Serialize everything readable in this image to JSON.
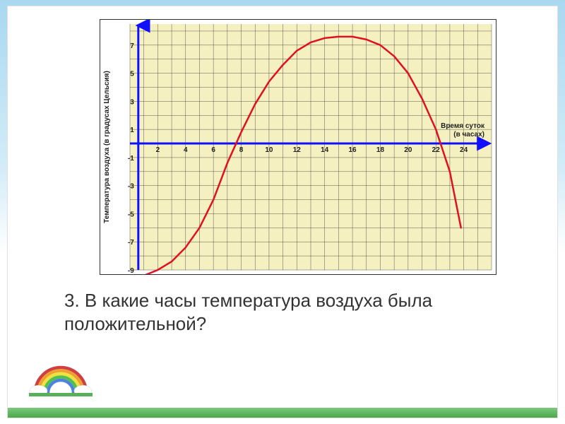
{
  "chart": {
    "type": "line",
    "x_label": "Время суток (в часах)",
    "y_label": "Температура воздуха (в градусах Цельсия)",
    "x_label_fontsize": 10,
    "y_label_fontsize": 10,
    "x_min": 0,
    "x_max": 26,
    "y_min": -9,
    "y_max": 8.5,
    "x_ticks": [
      2,
      4,
      6,
      8,
      10,
      12,
      14,
      16,
      18,
      20,
      22,
      24
    ],
    "y_ticks": [
      -9,
      -7,
      -5,
      -3,
      -1,
      1,
      3,
      5,
      7
    ],
    "tick_fontsize": 10,
    "grid_step_x": 1,
    "grid_step_y": 1,
    "grid_color": "#333333",
    "grid_width": 0.4,
    "plot_bg": "#f5f0c0",
    "axis_color": "#1010ff",
    "axis_width": 3,
    "curve_color": "#e01020",
    "curve_width": 2.5,
    "curve_points": [
      [
        0.2,
        -10.5
      ],
      [
        1,
        -9.4
      ],
      [
        2,
        -9
      ],
      [
        3,
        -8.4
      ],
      [
        4,
        -7.4
      ],
      [
        5,
        -6
      ],
      [
        6,
        -4
      ],
      [
        7,
        -1.4
      ],
      [
        8,
        0.8
      ],
      [
        9,
        2.8
      ],
      [
        10,
        4.4
      ],
      [
        11,
        5.6
      ],
      [
        12,
        6.6
      ],
      [
        13,
        7.2
      ],
      [
        14,
        7.5
      ],
      [
        15,
        7.6
      ],
      [
        16,
        7.6
      ],
      [
        17,
        7.4
      ],
      [
        18,
        7
      ],
      [
        19,
        6.2
      ],
      [
        20,
        5
      ],
      [
        21,
        3.2
      ],
      [
        22,
        1
      ],
      [
        23,
        -2
      ],
      [
        23.8,
        -6
      ]
    ]
  },
  "question": {
    "number": "3.",
    "text": "В какие часы температура воздуха была положительной?"
  },
  "colors": {
    "text": "#333333"
  }
}
